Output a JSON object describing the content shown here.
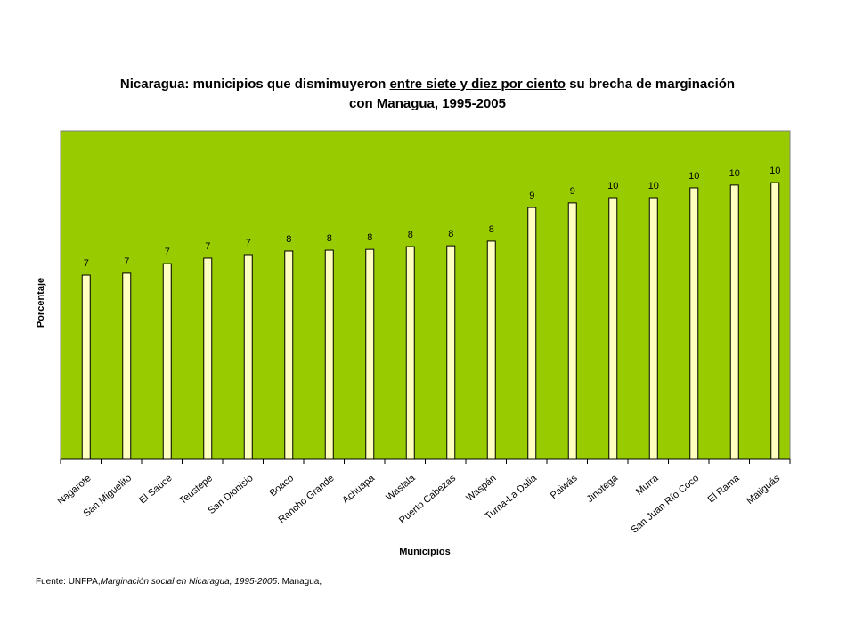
{
  "chart_data": {
    "type": "bar",
    "title": {
      "before": "Nicaragua: municipios que dismimuyeron ",
      "underlined": " entre siete y diez por ciento",
      "after": " su brecha de marginación",
      "line2": "con Managua, 1995-2005"
    },
    "x_label": "Municipios",
    "y_label": "Porcentaje",
    "categories": [
      "Nagarote",
      "San Miguelito",
      "El Sauce",
      "Teustepe",
      "San Dionisio",
      "Boaco",
      "Rancho Grande",
      "Achuapa",
      "Waslala",
      "Puerto Cabezas",
      "Waspán",
      "Tuma-La Dalia",
      "Paiwás",
      "Jinotega",
      "Murra",
      "San Juan Río Coco",
      "El Rama",
      "Matiguás"
    ],
    "values": [
      6.73,
      6.8,
      7.15,
      7.35,
      7.48,
      7.61,
      7.64,
      7.67,
      7.77,
      7.8,
      7.97,
      9.2,
      9.37,
      9.56,
      9.56,
      9.92,
      10.02,
      10.11
    ],
    "value_labels": [
      "7",
      "7",
      "7",
      "7",
      "7",
      "8",
      "8",
      "8",
      "8",
      "8",
      "8",
      "9",
      "9",
      "10",
      "10",
      "10",
      "10",
      "10"
    ],
    "color": "#ffffc0",
    "background": "#99cc00",
    "ylim": [
      0,
      12
    ],
    "source": {
      "before": "Fuente: UNFPA,",
      "italic": "Marginación social en Nicaragua, 1995-2005",
      "after": ". Managua,"
    }
  }
}
